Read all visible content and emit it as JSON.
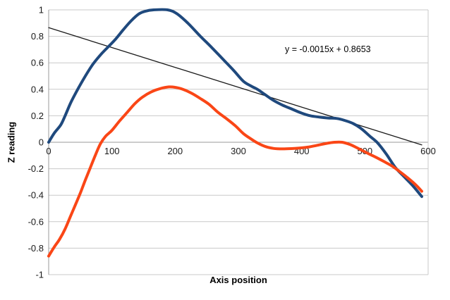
{
  "colors": {
    "background": "#ffffff",
    "gridline": "#c9c9c9",
    "axis_line": "#9a9a9a",
    "tick_text": "#1a1a1a",
    "series_blue": "#1f497d",
    "series_orange": "#fa4616",
    "trendline": "#1a1a1a"
  },
  "chart_data": {
    "type": "line",
    "title": "",
    "xlabel": "Axis position",
    "ylabel": "Z reading",
    "xlim": [
      0,
      600
    ],
    "ylim": [
      -1,
      1
    ],
    "x_ticks": [
      0,
      100,
      200,
      300,
      400,
      500,
      600
    ],
    "y_ticks": [
      -1,
      -0.8,
      -0.6,
      -0.4,
      -0.2,
      0,
      0.2,
      0.4,
      0.6,
      0.8,
      1
    ],
    "grid": "horizontal-major",
    "legend_position": "none",
    "annotation": "y = -0.0015x + 0.8653",
    "series": [
      {
        "name": "blue-smoothed-series",
        "color": "#1f497d",
        "width": 4,
        "smooth": true,
        "points": [
          [
            0,
            0.0
          ],
          [
            9,
            0.07
          ],
          [
            19,
            0.13
          ],
          [
            26,
            0.2
          ],
          [
            35,
            0.3
          ],
          [
            46,
            0.4
          ],
          [
            58,
            0.5
          ],
          [
            70,
            0.59
          ],
          [
            82,
            0.66
          ],
          [
            94,
            0.72
          ],
          [
            106,
            0.78
          ],
          [
            118,
            0.85
          ],
          [
            131,
            0.92
          ],
          [
            143,
            0.97
          ],
          [
            153,
            0.99
          ],
          [
            166,
            1.0
          ],
          [
            188,
            1.0
          ],
          [
            203,
            0.97
          ],
          [
            220,
            0.9
          ],
          [
            240,
            0.8
          ],
          [
            258,
            0.715
          ],
          [
            276,
            0.625
          ],
          [
            293,
            0.54
          ],
          [
            308,
            0.46
          ],
          [
            320,
            0.425
          ],
          [
            330,
            0.4
          ],
          [
            342,
            0.36
          ],
          [
            356,
            0.315
          ],
          [
            370,
            0.28
          ],
          [
            385,
            0.25
          ],
          [
            400,
            0.22
          ],
          [
            414,
            0.2
          ],
          [
            428,
            0.19
          ],
          [
            442,
            0.183
          ],
          [
            455,
            0.18
          ],
          [
            468,
            0.165
          ],
          [
            482,
            0.14
          ],
          [
            495,
            0.1
          ],
          [
            508,
            0.045
          ],
          [
            520,
            -0.005
          ],
          [
            534,
            -0.09
          ],
          [
            548,
            -0.19
          ],
          [
            562,
            -0.26
          ],
          [
            576,
            -0.33
          ],
          [
            590,
            -0.41
          ]
        ]
      },
      {
        "name": "orange-smoothed-series",
        "color": "#fa4616",
        "width": 4,
        "smooth": true,
        "points": [
          [
            0,
            -0.86
          ],
          [
            9,
            -0.79
          ],
          [
            17,
            -0.735
          ],
          [
            26,
            -0.655
          ],
          [
            34,
            -0.565
          ],
          [
            42,
            -0.475
          ],
          [
            50,
            -0.385
          ],
          [
            58,
            -0.285
          ],
          [
            66,
            -0.19
          ],
          [
            74,
            -0.095
          ],
          [
            82,
            -0.01
          ],
          [
            90,
            0.045
          ],
          [
            100,
            0.09
          ],
          [
            112,
            0.16
          ],
          [
            124,
            0.225
          ],
          [
            136,
            0.29
          ],
          [
            148,
            0.34
          ],
          [
            162,
            0.38
          ],
          [
            176,
            0.405
          ],
          [
            190,
            0.418
          ],
          [
            200,
            0.415
          ],
          [
            212,
            0.4
          ],
          [
            226,
            0.37
          ],
          [
            240,
            0.33
          ],
          [
            254,
            0.285
          ],
          [
            268,
            0.225
          ],
          [
            282,
            0.175
          ],
          [
            295,
            0.125
          ],
          [
            308,
            0.065
          ],
          [
            320,
            0.025
          ],
          [
            330,
            -0.005
          ],
          [
            343,
            -0.033
          ],
          [
            356,
            -0.047
          ],
          [
            370,
            -0.05
          ],
          [
            384,
            -0.048
          ],
          [
            398,
            -0.043
          ],
          [
            412,
            -0.035
          ],
          [
            426,
            -0.022
          ],
          [
            440,
            -0.008
          ],
          [
            452,
            0.0
          ],
          [
            464,
            0.0
          ],
          [
            477,
            -0.018
          ],
          [
            490,
            -0.048
          ],
          [
            503,
            -0.08
          ],
          [
            516,
            -0.11
          ],
          [
            530,
            -0.145
          ],
          [
            543,
            -0.18
          ],
          [
            556,
            -0.225
          ],
          [
            568,
            -0.27
          ],
          [
            580,
            -0.32
          ],
          [
            590,
            -0.37
          ]
        ]
      },
      {
        "name": "linear-trendline",
        "color": "#1a1a1a",
        "width": 1.3,
        "smooth": false,
        "points": [
          [
            0,
            0.8653
          ],
          [
            590,
            -0.0197
          ]
        ]
      }
    ]
  }
}
